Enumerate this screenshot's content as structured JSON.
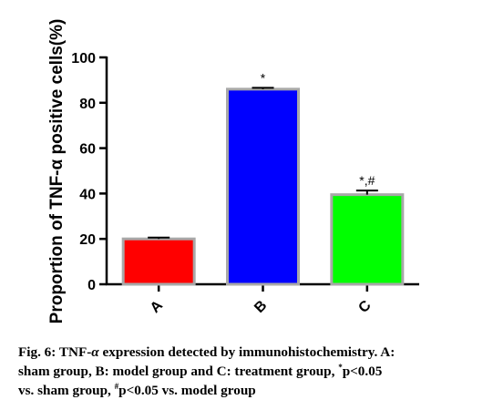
{
  "chart_data": {
    "type": "bar",
    "ylabel": "Proportion of TNF-α positive cells(%)",
    "xlabel": "",
    "ylim": [
      0,
      100
    ],
    "yticks": [
      0,
      20,
      40,
      60,
      80,
      100
    ],
    "categories": [
      "A",
      "B",
      "C"
    ],
    "values": [
      20,
      86,
      39.5
    ],
    "errors": [
      0.6,
      0.6,
      1.8
    ],
    "colors": [
      "#ff0000",
      "#0000ff",
      "#00ff00"
    ],
    "annotations": [
      "",
      "*",
      "*,#"
    ]
  },
  "caption": {
    "prefix": "Fig. 6: TNF-",
    "alpha": "α",
    "line1": " expression detected by immunohistochemistry. A:",
    "line2a": "sham group, B: model group and C: treatment group, ",
    "star": "*",
    "line2b": "p<0.05",
    "line3a": "vs. sham group, ",
    "hash": "#",
    "line3b": "p<0.05 vs. model group"
  }
}
